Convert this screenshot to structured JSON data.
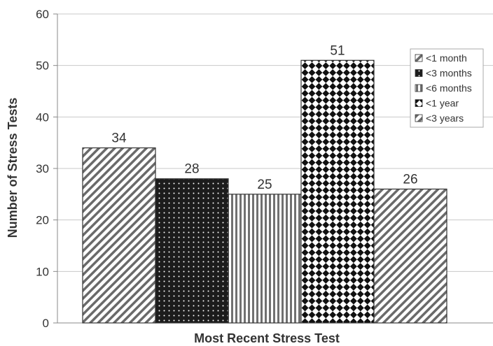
{
  "chart_data": {
    "type": "bar",
    "categories": [
      "<1 month",
      "<3 months",
      "<6 months",
      "<1 year",
      "<3 years"
    ],
    "values": [
      34,
      28,
      25,
      51,
      26
    ],
    "data_labels": [
      "34",
      "28",
      "25",
      "51",
      "26"
    ],
    "title": "",
    "xlabel": "Most Recent Stress Test",
    "ylabel": "Number of Stress Tests",
    "ylim": [
      0,
      60
    ],
    "yticks": [
      "0",
      "10",
      "20",
      "30",
      "40",
      "50",
      "60"
    ],
    "grid": true,
    "legend": {
      "placement": "top-right",
      "entries": [
        "<1 month",
        "<3 months",
        "<6 months",
        "<1 year",
        "<3 years"
      ]
    },
    "patterns": [
      "diagonal-stripes",
      "dots-on-black",
      "vertical-stripes",
      "checker-diamond",
      "diagonal-stripes"
    ],
    "colors": {
      "bar_stroke": "#333333",
      "grid": "#c8c8c8",
      "text": "#333333",
      "axis": "#888888"
    }
  }
}
